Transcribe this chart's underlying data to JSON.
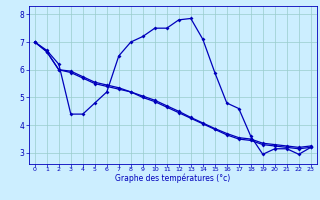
{
  "xlabel": "Graphe des températures (°c)",
  "background_color": "#cceeff",
  "line_color": "#0000bb",
  "grid_color": "#99cccc",
  "ylim": [
    2.6,
    8.3
  ],
  "xlim": [
    -0.5,
    23.5
  ],
  "yticks": [
    3,
    4,
    5,
    6,
    7,
    8
  ],
  "xticks": [
    0,
    1,
    2,
    3,
    4,
    5,
    6,
    7,
    8,
    9,
    10,
    11,
    12,
    13,
    14,
    15,
    16,
    17,
    18,
    19,
    20,
    21,
    22,
    23
  ],
  "line1_x": [
    0,
    1,
    2,
    3,
    4,
    5,
    6,
    7,
    8,
    9,
    10,
    11,
    12,
    13,
    14,
    15,
    16,
    17,
    18,
    19,
    20,
    21,
    22,
    23
  ],
  "line1_y": [
    7.0,
    6.7,
    6.2,
    4.4,
    4.4,
    4.8,
    5.2,
    6.5,
    7.0,
    7.2,
    7.5,
    7.5,
    7.8,
    7.85,
    7.1,
    5.9,
    4.8,
    4.6,
    3.6,
    2.95,
    3.15,
    3.15,
    2.95,
    3.2
  ],
  "line2_x": [
    0,
    1,
    2,
    3,
    4,
    5,
    6,
    7,
    8,
    9,
    10,
    11,
    12,
    13,
    14,
    15,
    16,
    17,
    18,
    19,
    20,
    21,
    22,
    23
  ],
  "line2_y": [
    7.0,
    6.65,
    6.0,
    5.9,
    5.7,
    5.5,
    5.4,
    5.3,
    5.2,
    5.0,
    4.85,
    4.65,
    4.45,
    4.25,
    4.05,
    3.85,
    3.65,
    3.5,
    3.45,
    3.3,
    3.25,
    3.2,
    3.15,
    3.2
  ],
  "line3_x": [
    0,
    1,
    2,
    3,
    4,
    5,
    6,
    7,
    8,
    9,
    10,
    11,
    12,
    13,
    14,
    15,
    16,
    17,
    18,
    19,
    20,
    21,
    22,
    23
  ],
  "line3_y": [
    7.0,
    6.65,
    6.0,
    5.95,
    5.75,
    5.55,
    5.45,
    5.35,
    5.2,
    5.05,
    4.9,
    4.7,
    4.5,
    4.28,
    4.08,
    3.88,
    3.7,
    3.55,
    3.5,
    3.35,
    3.3,
    3.25,
    3.2,
    3.25
  ]
}
